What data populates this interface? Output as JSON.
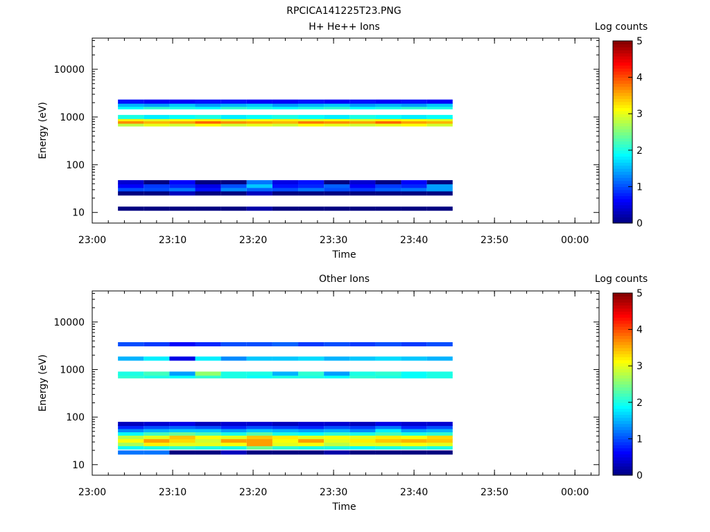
{
  "figure_title": "RPCICA141225T23.PNG",
  "colorbar_ticks": [
    "0",
    "1",
    "2",
    "3",
    "4",
    "5"
  ],
  "chart_data": [
    {
      "type": "heatmap",
      "title": "H+ He++ Ions",
      "xlabel": "Time",
      "ylabel": "Energy (eV)",
      "y_scale": "log",
      "ylim": [
        6,
        45000
      ],
      "xlim_minutes": [
        0,
        63
      ],
      "x_ticks": [
        {
          "value": 0,
          "label": "23:00"
        },
        {
          "value": 10,
          "label": "23:10"
        },
        {
          "value": 20,
          "label": "23:20"
        },
        {
          "value": 30,
          "label": "23:30"
        },
        {
          "value": 40,
          "label": "23:40"
        },
        {
          "value": 50,
          "label": "23:50"
        },
        {
          "value": 60,
          "label": "00:00"
        }
      ],
      "y_ticks": [
        {
          "value": 10,
          "label": "10"
        },
        {
          "value": 100,
          "label": "100"
        },
        {
          "value": 1000,
          "label": "1000"
        },
        {
          "value": 10000,
          "label": "10000"
        }
      ],
      "colorbar": {
        "label": "Log counts",
        "min": 0,
        "max": 5
      },
      "time_bins_minutes": [
        3.2,
        6.4,
        9.6,
        12.8,
        16.0,
        19.2,
        22.4,
        25.6,
        28.8,
        32.0,
        35.2,
        38.4,
        41.6,
        44.8
      ],
      "rows": [
        {
          "energy": 700,
          "levels": [
            2.8,
            3.0,
            2.9,
            3.1,
            2.9,
            3.0,
            2.9,
            3.1,
            3.0,
            2.9,
            3.0,
            3.1,
            2.9
          ]
        },
        {
          "energy": 800,
          "levels": [
            3.7,
            3.5,
            3.6,
            3.9,
            3.7,
            3.6,
            3.5,
            3.8,
            3.7,
            3.6,
            3.9,
            3.6,
            3.5
          ]
        },
        {
          "energy": 900,
          "levels": [
            3.2,
            3.0,
            3.1,
            3.2,
            3.0,
            3.1,
            3.2,
            3.0,
            3.1,
            3.0,
            3.2,
            3.1,
            3.0
          ]
        },
        {
          "energy": 1000,
          "levels": [
            2.0,
            1.8,
            1.9,
            2.0,
            1.8,
            1.9,
            2.0,
            1.9,
            1.8,
            2.0,
            1.9,
            1.8,
            1.9
          ]
        },
        {
          "energy": 1600,
          "levels": [
            1.9,
            2.1,
            2.0,
            1.9,
            2.1,
            2.0,
            1.9,
            2.0,
            2.1,
            1.9,
            2.0,
            2.1,
            2.0
          ]
        },
        {
          "energy": 1800,
          "levels": [
            1.5,
            1.4,
            1.6,
            1.4,
            1.5,
            1.6,
            1.4,
            1.5,
            1.6,
            1.4,
            1.5,
            1.4,
            1.6
          ]
        },
        {
          "energy": 2100,
          "levels": [
            0.7,
            0.6,
            0.6,
            0.7,
            0.7,
            0.6,
            0.6,
            0.7,
            0.6,
            0.7,
            0.6,
            0.7,
            0.6
          ]
        },
        {
          "energy": 30,
          "levels": [
            1.0,
            1.0,
            1.2,
            0.7,
            1.3,
            1.1,
            1.0,
            1.2,
            1.0,
            0.9,
            1.1,
            1.2,
            1.4
          ]
        },
        {
          "energy": 36,
          "levels": [
            0.6,
            0.9,
            0.8,
            0.5,
            1.0,
            1.6,
            0.7,
            0.8,
            1.1,
            0.6,
            0.9,
            0.8,
            1.4
          ]
        },
        {
          "energy": 43,
          "levels": [
            0.4,
            0.0,
            0.6,
            0.0,
            0.0,
            1.2,
            0.5,
            0.7,
            0.0,
            0.4,
            0.0,
            0.6,
            0.0
          ]
        },
        {
          "energy": 25,
          "levels": [
            0.0,
            0.0,
            0.3,
            0.0,
            0.0,
            0.3,
            0.0,
            0.0,
            0.0,
            0.0,
            0.0,
            0.0,
            0.0
          ]
        },
        {
          "energy": 12,
          "levels": [
            0.0,
            0.0,
            0.0,
            0.0,
            0.0,
            0.2,
            0.0,
            0.0,
            0.0,
            0.0,
            0.0,
            0.0,
            0.0
          ]
        }
      ]
    },
    {
      "type": "heatmap",
      "title": "Other Ions",
      "xlabel": "Time",
      "ylabel": "Energy (eV)",
      "y_scale": "log",
      "ylim": [
        6,
        45000
      ],
      "xlim_minutes": [
        0,
        63
      ],
      "x_ticks": [
        {
          "value": 0,
          "label": "23:00"
        },
        {
          "value": 10,
          "label": "23:10"
        },
        {
          "value": 20,
          "label": "23:20"
        },
        {
          "value": 30,
          "label": "23:30"
        },
        {
          "value": 40,
          "label": "23:40"
        },
        {
          "value": 50,
          "label": "23:50"
        },
        {
          "value": 60,
          "label": "00:00"
        }
      ],
      "y_ticks": [
        {
          "value": 10,
          "label": "10"
        },
        {
          "value": 100,
          "label": "100"
        },
        {
          "value": 1000,
          "label": "1000"
        },
        {
          "value": 10000,
          "label": "10000"
        }
      ],
      "colorbar": {
        "label": "Log counts",
        "min": 0,
        "max": 5
      },
      "time_bins_minutes": [
        3.2,
        6.4,
        9.6,
        12.8,
        16.0,
        19.2,
        22.4,
        25.6,
        28.8,
        32.0,
        35.2,
        38.4,
        41.6,
        44.8
      ],
      "rows": [
        {
          "energy": 18,
          "levels": [
            1.2,
            1.2,
            0.0,
            0.0,
            0.3,
            0.0,
            0.0,
            0.0,
            0.2,
            0.0,
            0.0,
            0.0,
            0.0
          ]
        },
        {
          "energy": 23,
          "levels": [
            1.9,
            2.0,
            2.1,
            2.0,
            2.0,
            2.4,
            2.1,
            2.0,
            2.0,
            1.9,
            2.0,
            2.1,
            2.0
          ]
        },
        {
          "energy": 27,
          "levels": [
            2.7,
            3.2,
            3.0,
            3.0,
            3.1,
            3.6,
            3.0,
            3.1,
            2.8,
            3.0,
            3.0,
            3.1,
            3.0
          ]
        },
        {
          "energy": 32,
          "levels": [
            3.1,
            3.6,
            3.3,
            2.9,
            3.6,
            3.6,
            3.1,
            3.6,
            3.0,
            3.2,
            3.4,
            3.5,
            3.4
          ]
        },
        {
          "energy": 38,
          "levels": [
            2.8,
            3.0,
            3.4,
            3.1,
            3.0,
            3.4,
            3.2,
            3.0,
            3.1,
            3.0,
            3.2,
            3.1,
            3.3
          ]
        },
        {
          "energy": 45,
          "levels": [
            1.9,
            2.2,
            2.4,
            2.2,
            2.0,
            2.3,
            2.0,
            1.9,
            2.1,
            2.0,
            2.2,
            2.0,
            2.1
          ]
        },
        {
          "energy": 53,
          "levels": [
            1.3,
            1.5,
            1.6,
            1.6,
            1.4,
            1.6,
            1.5,
            1.4,
            1.5,
            1.3,
            1.8,
            1.4,
            1.5
          ]
        },
        {
          "energy": 62,
          "levels": [
            0.8,
            1.0,
            1.1,
            1.0,
            0.8,
            1.0,
            0.9,
            0.8,
            1.0,
            0.9,
            1.2,
            0.8,
            1.0
          ]
        },
        {
          "energy": 72,
          "levels": [
            0.3,
            0.4,
            0.5,
            0.3,
            0.4,
            0.4,
            0.3,
            0.4,
            0.4,
            0.3,
            0.5,
            0.4,
            0.4
          ]
        },
        {
          "energy": 720,
          "levels": [
            2.1,
            2.0,
            1.9,
            2.1,
            2.0,
            1.9,
            2.0,
            2.0,
            1.9,
            2.1,
            2.0,
            1.9,
            2.0
          ]
        },
        {
          "energy": 820,
          "levels": [
            2.0,
            2.2,
            1.4,
            2.6,
            2.0,
            2.0,
            1.5,
            2.1,
            1.4,
            2.0,
            2.1,
            1.9,
            2.0
          ]
        },
        {
          "energy": 1700,
          "levels": [
            1.5,
            1.8,
            0.5,
            1.8,
            1.3,
            1.6,
            1.6,
            1.7,
            1.5,
            1.6,
            1.7,
            1.6,
            1.5
          ]
        },
        {
          "energy": 3400,
          "levels": [
            1.0,
            0.9,
            0.6,
            0.8,
            1.0,
            1.0,
            1.1,
            0.9,
            1.0,
            0.9,
            1.0,
            0.9,
            1.0
          ]
        }
      ]
    }
  ]
}
